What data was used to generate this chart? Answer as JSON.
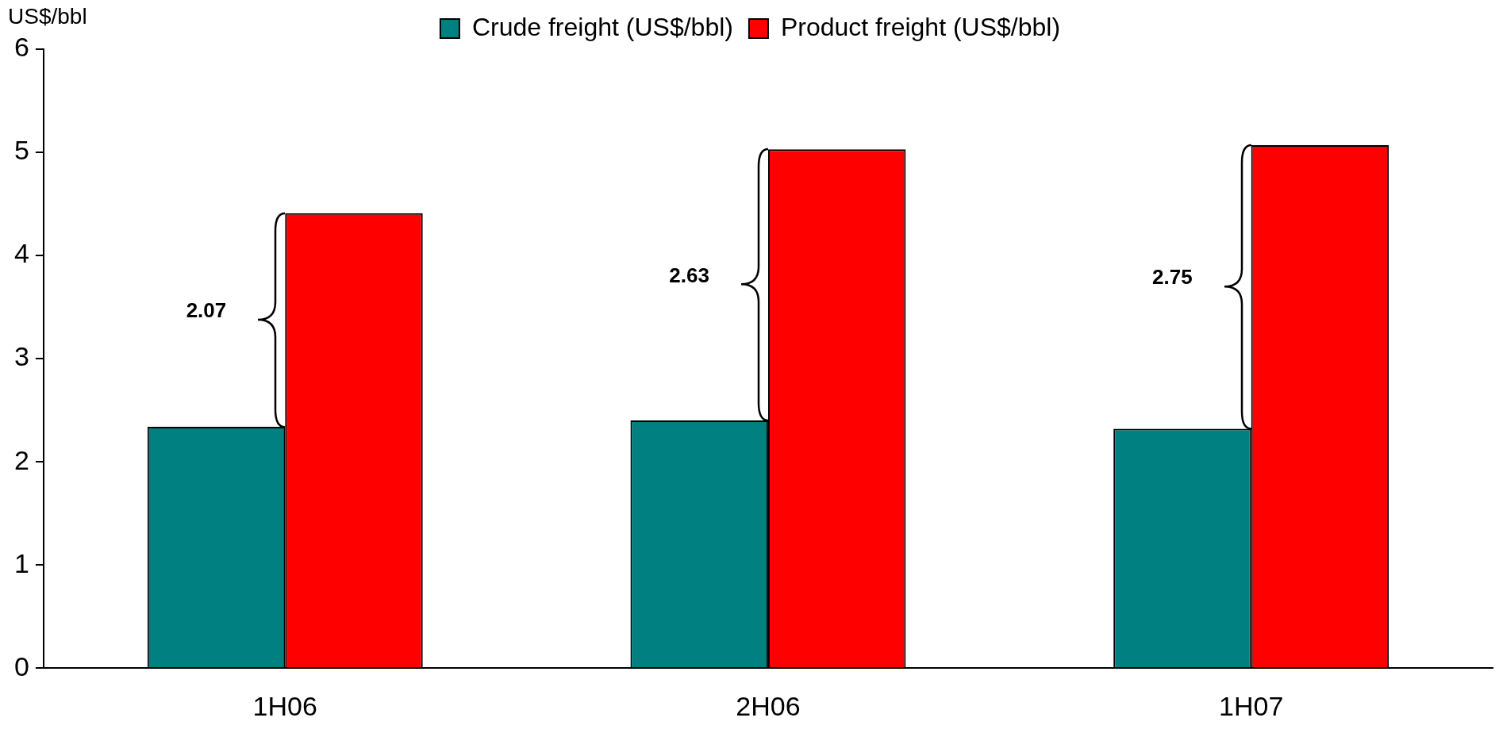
{
  "chart_data": {
    "type": "bar",
    "ylabel": "US$/bbl",
    "categories": [
      "1H06",
      "2H06",
      "1H07"
    ],
    "series": [
      {
        "name": "Crude freight (US$/bbl)",
        "color": "#008080",
        "values": [
          2.34,
          2.4,
          2.32
        ]
      },
      {
        "name": "Product freight (US$/bbl)",
        "color": "#ff0000",
        "values": [
          4.41,
          5.03,
          5.07
        ]
      }
    ],
    "ylim": [
      0,
      6
    ],
    "yticks": [
      0,
      1,
      2,
      3,
      4,
      5,
      6
    ],
    "grid": false,
    "legend": "top",
    "annotations": [
      {
        "text": "2.07",
        "x": "1H06",
        "y": 3.38
      },
      {
        "text": "2.63",
        "x": "2H06",
        "y": 3.72
      },
      {
        "text": "2.75",
        "x": "1H07",
        "y": 3.7
      }
    ]
  }
}
